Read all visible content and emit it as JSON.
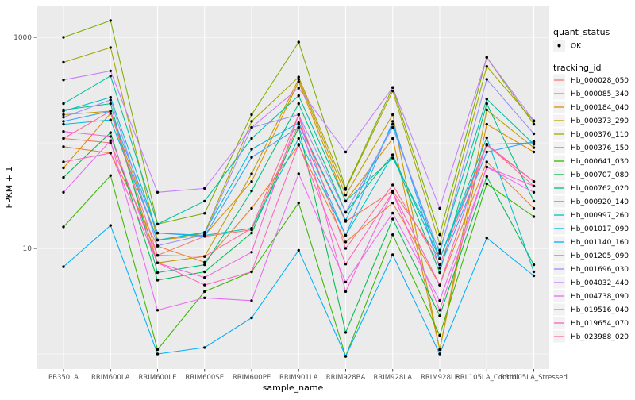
{
  "chart_data": {
    "type": "line",
    "title": "",
    "xlabel": "sample_name",
    "ylabel": "FPKM + 1",
    "y_scale": "log10",
    "ylim": [
      0.7,
      1900
    ],
    "grid": true,
    "legend_position": "right",
    "y_axis_ticks": [
      {
        "value": 1000,
        "label": "1000"
      },
      {
        "value": 10,
        "label": "10"
      }
    ],
    "y_grid_major": [
      1000,
      10
    ],
    "y_grid_minor": [
      100,
      1
    ],
    "categories": [
      "PB350LA",
      "RRIM600LA",
      "RRIM600LE",
      "RRIM600SE",
      "RRIM600PE",
      "RRIM901LA",
      "RRIM928BA",
      "RRIM928LA",
      "RRIM928LE",
      "RRII105LA_Control",
      "RRII105LA_Stressed"
    ],
    "legend_quant": {
      "title": "quant_status",
      "entries": [
        {
          "label": "OK",
          "marker": "point",
          "color": "#000000"
        }
      ]
    },
    "legend_tracking_title": "tracking_id",
    "series": [
      {
        "name": "Hb_000028_050",
        "color": "#F8766D",
        "quant_status": "OK",
        "values": [
          110,
          100,
          8.6,
          13,
          15,
          150,
          18,
          35,
          8,
          95,
          43
        ]
      },
      {
        "name": "Hb_000085_340",
        "color": "#EA8331",
        "quant_status": "OK",
        "values": [
          92,
          80,
          10.5,
          7.4,
          24,
          95,
          11.5,
          27,
          4.5,
          66,
          24
        ]
      },
      {
        "name": "Hb_000184_040",
        "color": "#D89000",
        "quant_status": "OK",
        "values": [
          58,
          190,
          12,
          13.3,
          43,
          380,
          28,
          110,
          1.1,
          150,
          82
        ]
      },
      {
        "name": "Hb_000373_290",
        "color": "#C09B00",
        "quant_status": "OK",
        "values": [
          185,
          200,
          7.3,
          8.4,
          51,
          400,
          32,
          185,
          1.1,
          205,
          90
        ]
      },
      {
        "name": "Hb_000376_110",
        "color": "#A3A500",
        "quant_status": "OK",
        "values": [
          580,
          800,
          12,
          14,
          160,
          420,
          36,
          310,
          11,
          530,
          160
        ]
      },
      {
        "name": "Hb_000376_150",
        "color": "#7CAE00",
        "quant_status": "OK",
        "values": [
          1000,
          1440,
          17,
          21.5,
          185,
          900,
          37,
          335,
          13.5,
          645,
          150
        ]
      },
      {
        "name": "Hb_000641_030",
        "color": "#39B600",
        "quant_status": "OK",
        "values": [
          16,
          49,
          1.1,
          3.9,
          6,
          27,
          0.95,
          13.5,
          1.5,
          41,
          20
        ]
      },
      {
        "name": "Hb_000707_080",
        "color": "#00BB4E",
        "quant_status": "OK",
        "values": [
          47,
          125,
          5,
          6,
          14,
          140,
          1.6,
          19,
          2.3,
          48,
          7
        ]
      },
      {
        "name": "Hb_000762_020",
        "color": "#00BF7D",
        "quant_status": "OK",
        "values": [
          205,
          235,
          5.9,
          7,
          35,
          235,
          22,
          77,
          5.9,
          235,
          28
        ]
      },
      {
        "name": "Hb_000920_140",
        "color": "#00C1A3",
        "quant_status": "OK",
        "values": [
          235,
          430,
          17,
          28,
          110,
          280,
          28,
          72,
          9.6,
          260,
          97
        ]
      },
      {
        "name": "Hb_000997_260",
        "color": "#00BFC4",
        "quant_status": "OK",
        "values": [
          200,
          270,
          14,
          13.3,
          15.5,
          110,
          13.3,
          77,
          8,
          112,
          6
        ]
      },
      {
        "name": "Hb_001017_090",
        "color": "#00BAE0",
        "quant_status": "OK",
        "values": [
          150,
          165,
          12,
          14.2,
          87,
          155,
          18.5,
          150,
          8,
          97,
          100
        ]
      },
      {
        "name": "Hb_001140_160",
        "color": "#00B0F6",
        "quant_status": "OK",
        "values": [
          6.7,
          16.5,
          1.0,
          1.15,
          2.2,
          9.6,
          0.95,
          8.7,
          1.0,
          12.6,
          5.5
        ]
      },
      {
        "name": "Hb_001205_090",
        "color": "#35A2FF",
        "quant_status": "OK",
        "values": [
          160,
          200,
          14,
          13,
          73,
          140,
          13.3,
          160,
          6.5,
          82,
          103
        ]
      },
      {
        "name": "Hb_001696_030",
        "color": "#9590FF",
        "quant_status": "OK",
        "values": [
          175,
          255,
          10.6,
          13.5,
          140,
          185,
          22,
          140,
          9,
          400,
          122
        ]
      },
      {
        "name": "Hb_004032_440",
        "color": "#C77CFF",
        "quant_status": "OK",
        "values": [
          395,
          480,
          34,
          37,
          140,
          330,
          82,
          335,
          24,
          645,
          162
        ]
      },
      {
        "name": "Hb_004738_090",
        "color": "#E76BF3",
        "quant_status": "OK",
        "values": [
          34,
          105,
          2.6,
          3.4,
          3.2,
          51,
          4.8,
          21.6,
          3.2,
          59,
          34
        ]
      },
      {
        "name": "Hb_019516_040",
        "color": "#FA62DB",
        "quant_status": "OK",
        "values": [
          128,
          115,
          7.3,
          5.3,
          9.2,
          185,
          3.9,
          34,
          2.6,
          59,
          39
        ]
      },
      {
        "name": "Hb_019654_070",
        "color": "#FF62BC",
        "quant_status": "OK",
        "values": [
          66,
          80,
          7.3,
          4.5,
          6,
          97,
          7.1,
          34,
          4.5,
          97,
          43
        ]
      },
      {
        "name": "Hb_023988_020",
        "color": "#FF6A98",
        "quant_status": "OK",
        "values": [
          110,
          200,
          8.6,
          8.4,
          15.5,
          185,
          10,
          40,
          7,
          97,
          39
        ]
      }
    ],
    "colors": {
      "panel_bg": "#EBEBEB",
      "grid": "#FFFFFF",
      "point": "#000000",
      "axis_text": "#4D4D4D",
      "tick_mark": "#333333",
      "legend_key_bg": "#F2F2F2",
      "plot_bg": "#FFFFFF"
    }
  }
}
